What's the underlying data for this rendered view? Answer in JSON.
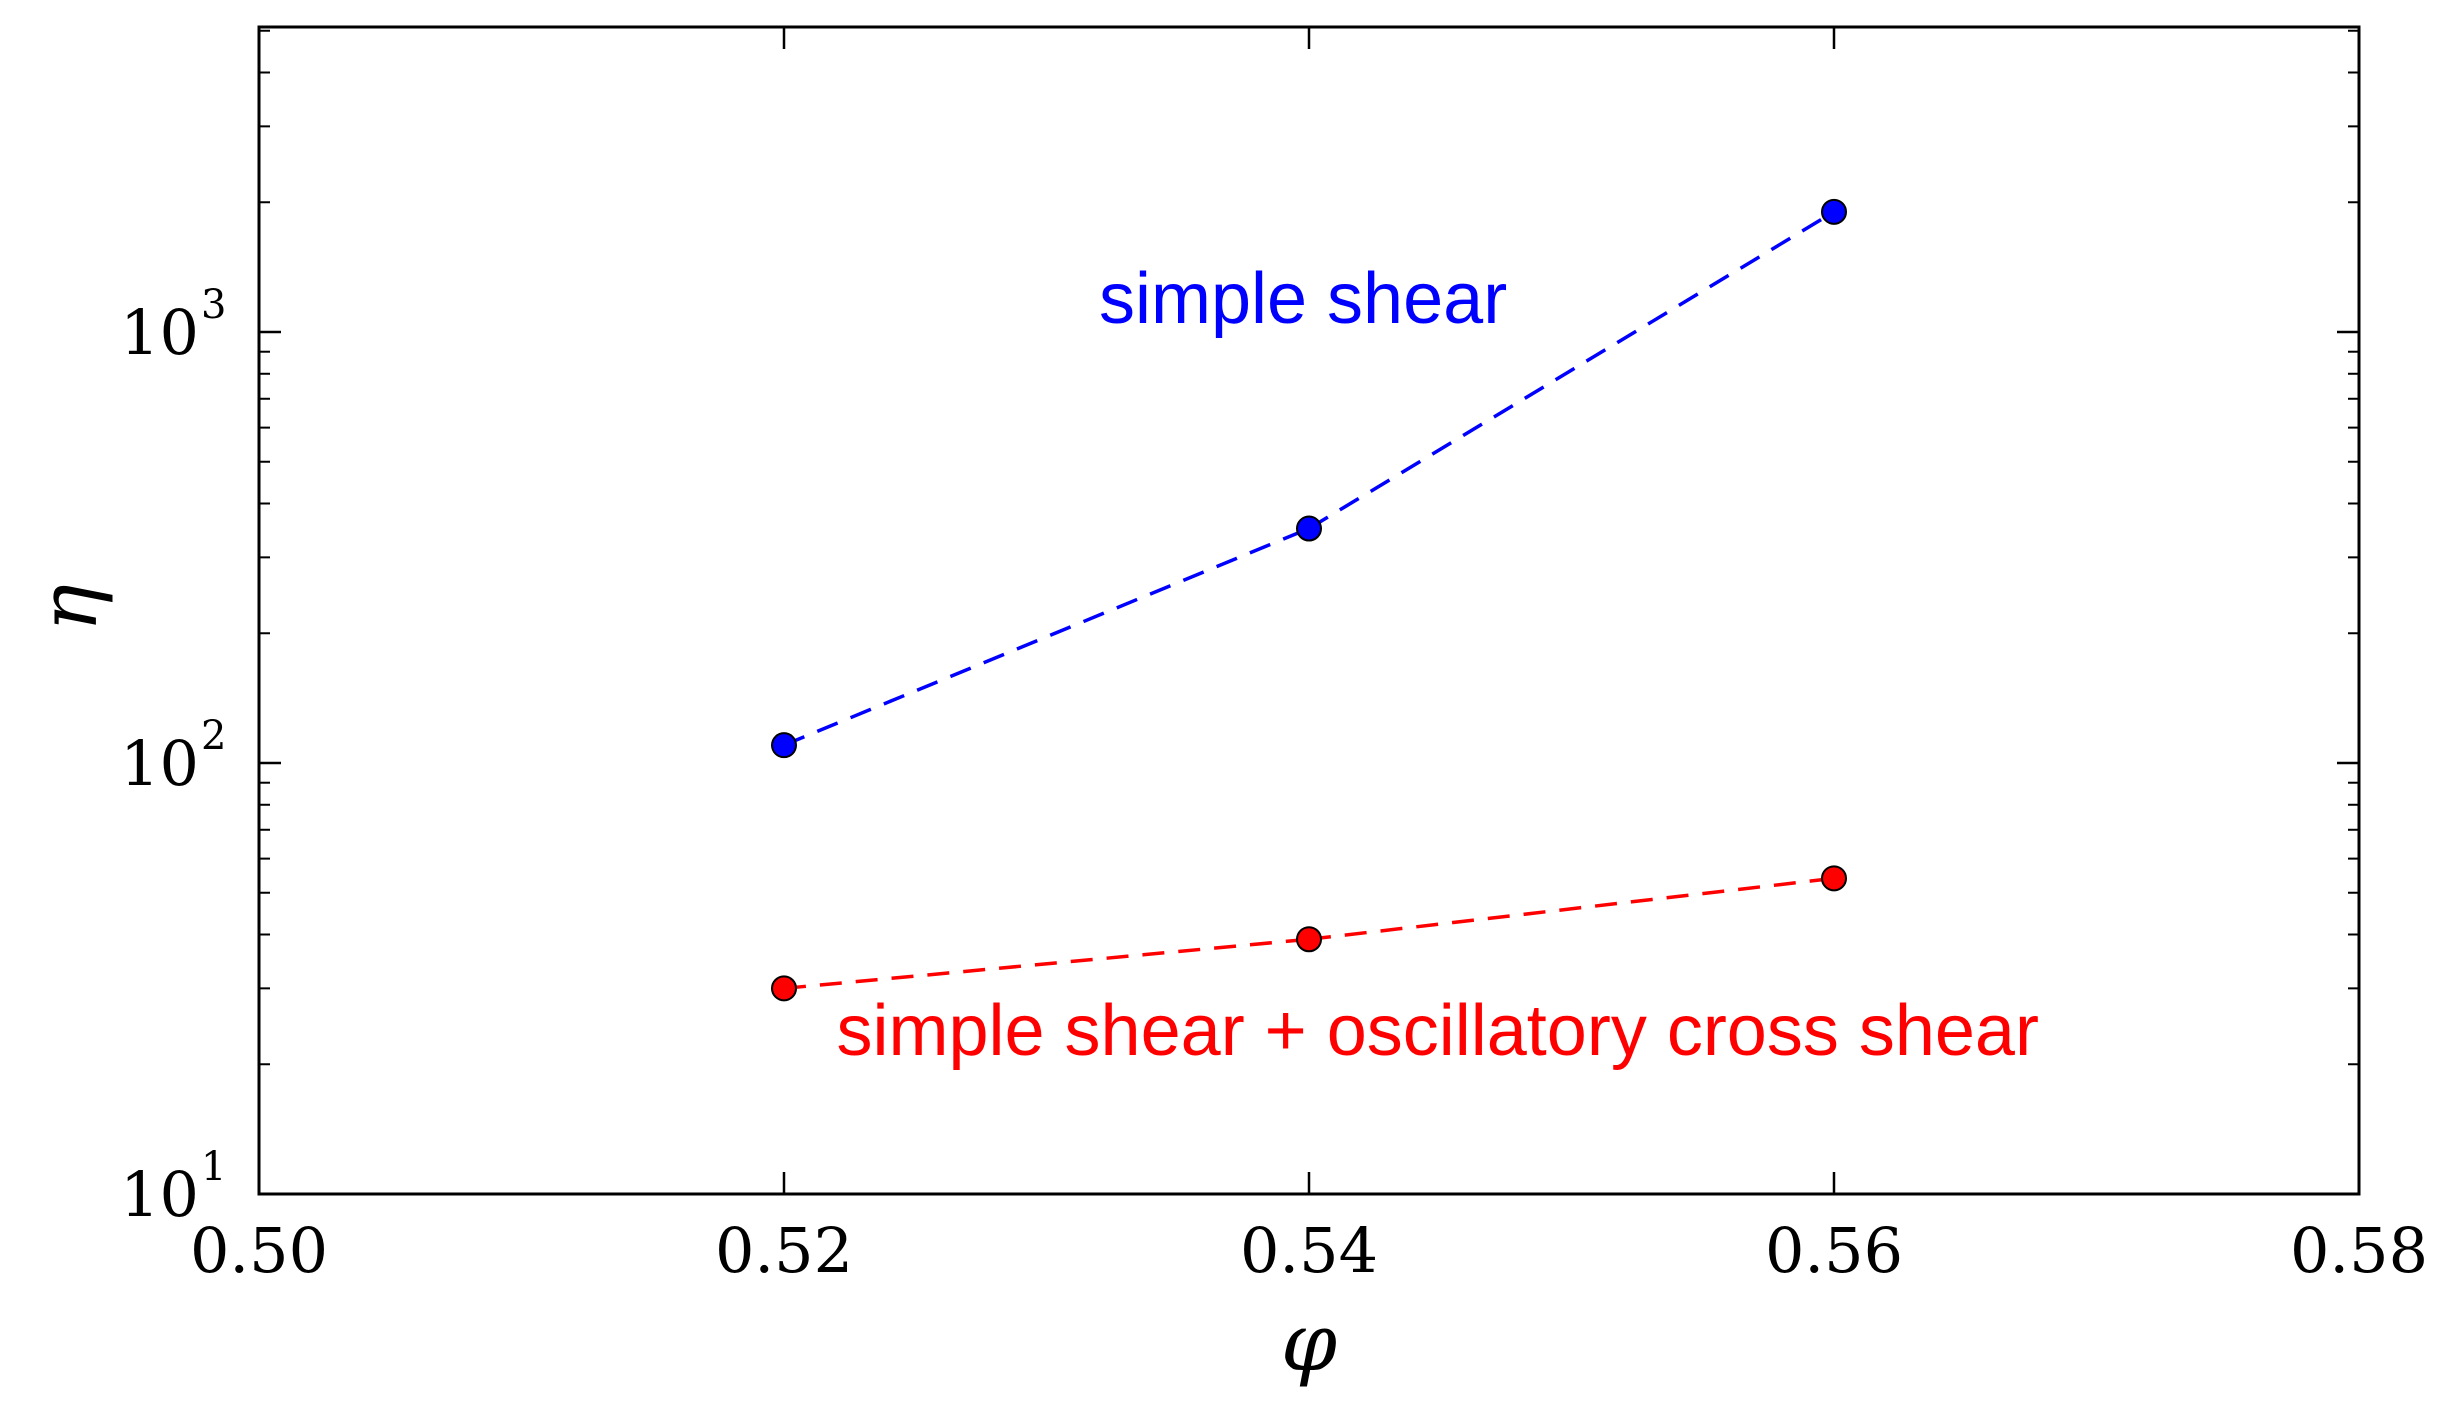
{
  "chart_data": {
    "type": "line",
    "title": "",
    "xlabel": "φ",
    "ylabel": "η",
    "xlim": [
      0.5,
      0.58
    ],
    "ylim": [
      10,
      5000
    ],
    "yscale": "log",
    "grid": false,
    "legend": "none",
    "x_ticks": [
      "0.50",
      "0.52",
      "0.54",
      "0.56",
      "0.58"
    ],
    "y_ticks": [
      {
        "base": "10",
        "exp": "1",
        "value": 10
      },
      {
        "base": "10",
        "exp": "2",
        "value": 100
      },
      {
        "base": "10",
        "exp": "3",
        "value": 1000
      }
    ],
    "series": [
      {
        "color": "#0000ff",
        "line_style": "dashed",
        "marker": "circle",
        "x": [
          0.52,
          0.54,
          0.56
        ],
        "y": [
          110,
          350,
          1900
        ]
      },
      {
        "color": "#ff0000",
        "line_style": "dashed",
        "marker": "circle",
        "x": [
          0.52,
          0.54,
          0.56
        ],
        "y": [
          30,
          39,
          54
        ]
      }
    ],
    "annotations": [
      {
        "text": "simple shear",
        "color": "#0000ff",
        "x": 0.532,
        "y": 1050
      },
      {
        "text": "simple shear + oscillatory cross shear",
        "color": "#ff0000",
        "x": 0.522,
        "y": 21
      }
    ]
  }
}
